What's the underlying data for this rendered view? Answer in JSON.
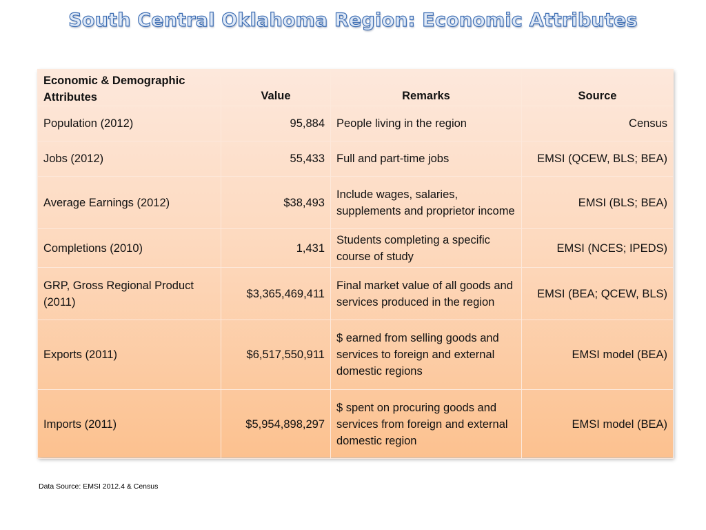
{
  "title": "South Central Oklahoma Region: Economic Attributes",
  "colors": {
    "title_fill": "#dfe9f7",
    "title_stroke": "#3f6fb4",
    "table_top": "#fde8dc",
    "table_bottom": "#fcc18f"
  },
  "table": {
    "headers": {
      "attribute": "Economic & Demographic Attributes",
      "value": "Value",
      "remarks": "Remarks",
      "source": "Source"
    },
    "rows": [
      {
        "attribute": "Population (2012)",
        "value": "95,884",
        "remarks": "People living in the region",
        "source": "Census"
      },
      {
        "attribute": "Jobs (2012)",
        "value": "55,433",
        "remarks": "Full and part-time jobs",
        "source": "EMSI (QCEW, BLS; BEA)"
      },
      {
        "attribute": "Average Earnings (2012)",
        "value": "$38,493",
        "remarks": "Include wages, salaries, supplements and proprietor income",
        "source": "EMSI (BLS; BEA)"
      },
      {
        "attribute": "Completions (2010)",
        "value": "1,431",
        "remarks": "Students completing a specific course of study",
        "source": "EMSI (NCES; IPEDS)"
      },
      {
        "attribute": "GRP, Gross Regional Product (2011)",
        "value": "$3,365,469,411",
        "remarks": "Final market value of all goods and services produced in the region",
        "source": "EMSI (BEA; QCEW, BLS)"
      },
      {
        "attribute": "Exports (2011)",
        "value": "$6,517,550,911",
        "remarks": "$ earned from selling goods and services to foreign and external domestic regions",
        "source": "EMSI model (BEA)"
      },
      {
        "attribute": "Imports (2011)",
        "value": "$5,954,898,297",
        "remarks": "$ spent on procuring goods and services from foreign and external domestic region",
        "source": "EMSI model (BEA)"
      }
    ]
  },
  "footnote": "Data Source: EMSI 2012.4 & Census"
}
